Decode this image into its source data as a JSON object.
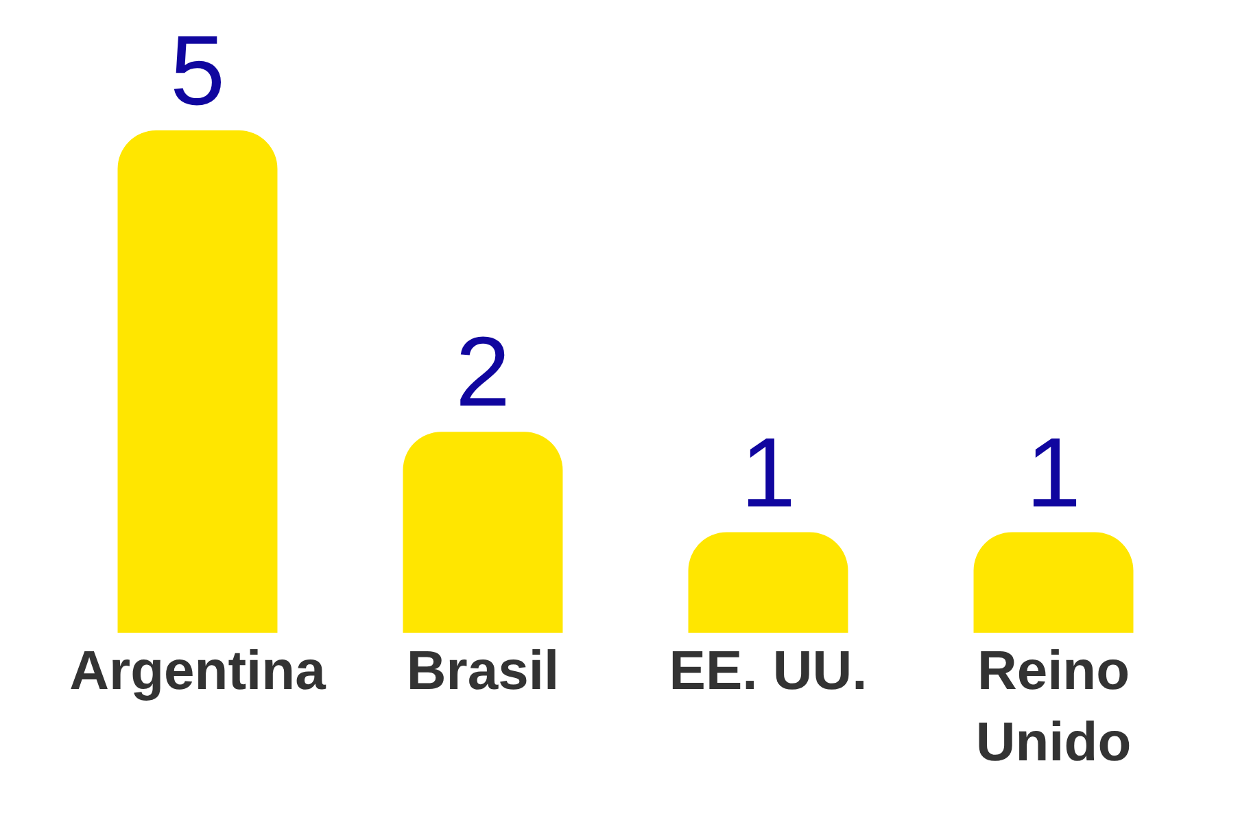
{
  "chart_data": {
    "type": "bar",
    "categories": [
      "Argentina",
      "Brasil",
      "EE. UU.",
      "Reino Unido"
    ],
    "values": [
      5,
      2,
      1,
      1
    ],
    "color": "#ffe600",
    "data_labels": true,
    "legend": false
  }
}
